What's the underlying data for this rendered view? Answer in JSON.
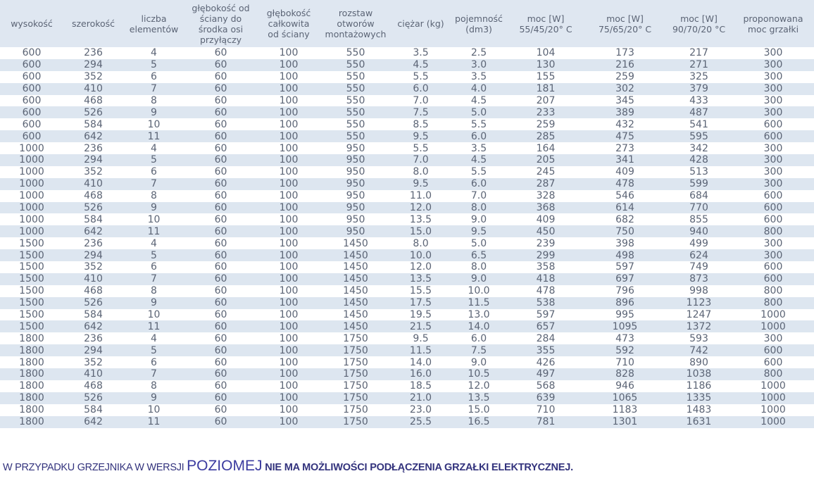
{
  "table": {
    "headers": [
      [
        "wysokość"
      ],
      [
        "szerokość"
      ],
      [
        "liczba",
        "elementów"
      ],
      [
        "głębokość od",
        "ściany do",
        "środka osi",
        "przyłączy"
      ],
      [
        "głębokość",
        "całkowita",
        "od ściany"
      ],
      [
        "rozstaw",
        "otworów",
        "montażowych"
      ],
      [
        "ciężar (kg)"
      ],
      [
        "pojemność",
        "(dm3)"
      ],
      [
        "moc [W]",
        "55/45/20° C"
      ],
      [
        "moc [W]",
        "75/65/20° C"
      ],
      [
        "moc [W]",
        "90/70/20 °C"
      ],
      [
        "proponowana",
        "moc grzałki"
      ]
    ],
    "rows": [
      [
        "600",
        "236",
        "4",
        "60",
        "100",
        "550",
        "3.5",
        "2.5",
        "104",
        "173",
        "217",
        "300"
      ],
      [
        "600",
        "294",
        "5",
        "60",
        "100",
        "550",
        "4.5",
        "3.0",
        "130",
        "216",
        "271",
        "300"
      ],
      [
        "600",
        "352",
        "6",
        "60",
        "100",
        "550",
        "5.5",
        "3.5",
        "155",
        "259",
        "325",
        "300"
      ],
      [
        "600",
        "410",
        "7",
        "60",
        "100",
        "550",
        "6.0",
        "4.0",
        "181",
        "302",
        "379",
        "300"
      ],
      [
        "600",
        "468",
        "8",
        "60",
        "100",
        "550",
        "7.0",
        "4.5",
        "207",
        "345",
        "433",
        "300"
      ],
      [
        "600",
        "526",
        "9",
        "60",
        "100",
        "550",
        "7.5",
        "5.0",
        "233",
        "389",
        "487",
        "300"
      ],
      [
        "600",
        "584",
        "10",
        "60",
        "100",
        "550",
        "8.5",
        "5.5",
        "259",
        "432",
        "541",
        "600"
      ],
      [
        "600",
        "642",
        "11",
        "60",
        "100",
        "550",
        "9.5",
        "6.0",
        "285",
        "475",
        "595",
        "600"
      ],
      [
        "1000",
        "236",
        "4",
        "60",
        "100",
        "950",
        "5.5",
        "3.5",
        "164",
        "273",
        "342",
        "300"
      ],
      [
        "1000",
        "294",
        "5",
        "60",
        "100",
        "950",
        "7.0",
        "4.5",
        "205",
        "341",
        "428",
        "300"
      ],
      [
        "1000",
        "352",
        "6",
        "60",
        "100",
        "950",
        "8.0",
        "5.5",
        "245",
        "409",
        "513",
        "300"
      ],
      [
        "1000",
        "410",
        "7",
        "60",
        "100",
        "950",
        "9.5",
        "6.0",
        "287",
        "478",
        "599",
        "300"
      ],
      [
        "1000",
        "468",
        "8",
        "60",
        "100",
        "950",
        "11.0",
        "7.0",
        "328",
        "546",
        "684",
        "600"
      ],
      [
        "1000",
        "526",
        "9",
        "60",
        "100",
        "950",
        "12.0",
        "8.0",
        "368",
        "614",
        "770",
        "600"
      ],
      [
        "1000",
        "584",
        "10",
        "60",
        "100",
        "950",
        "13.5",
        "9.0",
        "409",
        "682",
        "855",
        "600"
      ],
      [
        "1000",
        "642",
        "11",
        "60",
        "100",
        "950",
        "15.0",
        "9.5",
        "450",
        "750",
        "940",
        "800"
      ],
      [
        "1500",
        "236",
        "4",
        "60",
        "100",
        "1450",
        "8.0",
        "5.0",
        "239",
        "398",
        "499",
        "300"
      ],
      [
        "1500",
        "294",
        "5",
        "60",
        "100",
        "1450",
        "10.0",
        "6.5",
        "299",
        "498",
        "624",
        "300"
      ],
      [
        "1500",
        "352",
        "6",
        "60",
        "100",
        "1450",
        "12.0",
        "8.0",
        "358",
        "597",
        "749",
        "600"
      ],
      [
        "1500",
        "410",
        "7",
        "60",
        "100",
        "1450",
        "13.5",
        "9.0",
        "418",
        "697",
        "873",
        "600"
      ],
      [
        "1500",
        "468",
        "8",
        "60",
        "100",
        "1450",
        "15.5",
        "10.0",
        "478",
        "796",
        "998",
        "800"
      ],
      [
        "1500",
        "526",
        "9",
        "60",
        "100",
        "1450",
        "17.5",
        "11.5",
        "538",
        "896",
        "1123",
        "800"
      ],
      [
        "1500",
        "584",
        "10",
        "60",
        "100",
        "1450",
        "19.5",
        "13.0",
        "597",
        "995",
        "1247",
        "1000"
      ],
      [
        "1500",
        "642",
        "11",
        "60",
        "100",
        "1450",
        "21.5",
        "14.0",
        "657",
        "1095",
        "1372",
        "1000"
      ],
      [
        "1800",
        "236",
        "4",
        "60",
        "100",
        "1750",
        "9.5",
        "6.0",
        "284",
        "473",
        "593",
        "300"
      ],
      [
        "1800",
        "294",
        "5",
        "60",
        "100",
        "1750",
        "11.5",
        "7.5",
        "355",
        "592",
        "742",
        "600"
      ],
      [
        "1800",
        "352",
        "6",
        "60",
        "100",
        "1750",
        "14.0",
        "9.0",
        "426",
        "710",
        "890",
        "600"
      ],
      [
        "1800",
        "410",
        "7",
        "60",
        "100",
        "1750",
        "16.0",
        "10.5",
        "497",
        "828",
        "1038",
        "800"
      ],
      [
        "1800",
        "468",
        "8",
        "60",
        "100",
        "1750",
        "18.5",
        "12.0",
        "568",
        "946",
        "1186",
        "1000"
      ],
      [
        "1800",
        "526",
        "9",
        "60",
        "100",
        "1750",
        "21.0",
        "13.5",
        "639",
        "1065",
        "1335",
        "1000"
      ],
      [
        "1800",
        "584",
        "10",
        "60",
        "100",
        "1750",
        "23.0",
        "15.0",
        "710",
        "1183",
        "1483",
        "1000"
      ],
      [
        "1800",
        "642",
        "11",
        "60",
        "100",
        "1750",
        "25.5",
        "16.5",
        "781",
        "1301",
        "1631",
        "1000"
      ]
    ]
  },
  "note": {
    "part1": "W PRZYPADKU GRZEJNIKA W WERSJI ",
    "part2": "POZIOMEJ",
    "part3": " NIE MA MOŻLIWOŚCI PODŁĄCZENIA GRZAŁKI ELEKTRYCZNEJ."
  },
  "colors": {
    "header_bg": "#dfe7f1",
    "stripe_bg": "#dde6f0",
    "text": "#5b6475",
    "note_text": "#33337d"
  }
}
